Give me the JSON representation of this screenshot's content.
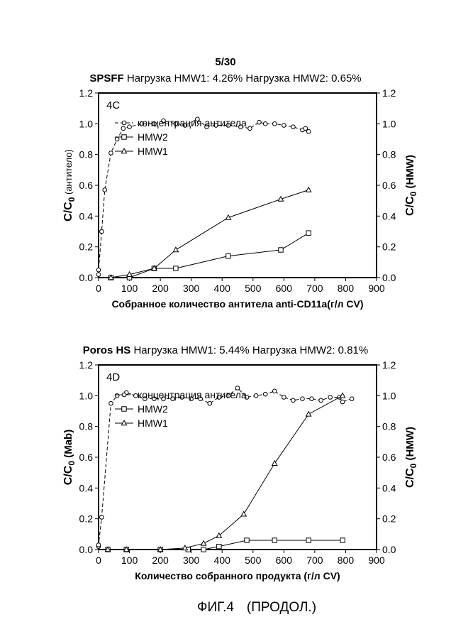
{
  "page_label": "5/30",
  "caption": {
    "fig": "ФИГ.4",
    "cont": "(ПРОДОЛ.)"
  },
  "chart_data": [
    {
      "type": "line",
      "panel": "4C",
      "title_bold": "SPSFF",
      "title_rest": " Нагрузка HMW1: 4.26% Нагрузка HMW2: 0.65%",
      "xlabel": "Собранное количество антитела anti-CD11a(г/л CV)",
      "ylabel_left_main": "C/C",
      "ylabel_left_sub": "0",
      "ylabel_left_extra": " (антитело)",
      "ylabel_right_main": "C/C",
      "ylabel_right_sub": "0",
      "ylabel_right_extra": " (HMW)",
      "xlim": [
        0,
        900
      ],
      "ylim": [
        0,
        1.2
      ],
      "xticks": [
        0,
        100,
        200,
        300,
        400,
        500,
        600,
        700,
        800,
        900
      ],
      "yticks": [
        0.0,
        0.2,
        0.4,
        0.6,
        0.8,
        1.0,
        1.2
      ],
      "legend_position": "upper-left",
      "series": [
        {
          "name": "концентрация антитела",
          "marker": "circle",
          "dash": true,
          "axis": "left",
          "x": [
            0,
            0,
            10,
            20,
            40,
            60,
            80,
            100,
            140,
            180,
            210,
            250,
            280,
            320,
            350,
            380,
            420,
            460,
            490,
            520,
            540,
            570,
            600,
            630,
            660,
            670,
            680
          ],
          "y": [
            0.02,
            0.05,
            0.3,
            0.57,
            0.81,
            0.9,
            0.97,
            0.98,
            1.0,
            1.0,
            1.02,
            1.0,
            0.99,
            1.03,
            0.98,
            0.99,
            0.99,
            0.98,
            0.97,
            1.01,
            1.0,
            1.0,
            0.99,
            0.98,
            0.96,
            0.97,
            0.95
          ]
        },
        {
          "name": "HMW2",
          "marker": "square",
          "dash": false,
          "axis": "right",
          "x": [
            40,
            100,
            180,
            250,
            420,
            590,
            680
          ],
          "y": [
            0.0,
            0.0,
            0.06,
            0.06,
            0.14,
            0.18,
            0.29
          ]
        },
        {
          "name": "HMW1",
          "marker": "triangle",
          "dash": false,
          "axis": "right",
          "x": [
            40,
            100,
            180,
            250,
            420,
            590,
            680
          ],
          "y": [
            0.0,
            0.02,
            0.06,
            0.18,
            0.39,
            0.51,
            0.57
          ]
        }
      ]
    },
    {
      "type": "line",
      "panel": "4D",
      "title_bold": "Poros HS",
      "title_rest": " Нагрузка HMW1: 5.44% Нагрузка HMW2: 0.81%",
      "xlabel": "Количество собранного продукта (г/л CV)",
      "ylabel_left_main": "C/C",
      "ylabel_left_sub": "0",
      "ylabel_left_extra": " (Mab)",
      "ylabel_right_main": "C/C",
      "ylabel_right_sub": "0",
      "ylabel_right_extra": " (HMW)",
      "xlim": [
        0,
        900
      ],
      "ylim": [
        0,
        1.2
      ],
      "xticks": [
        0,
        100,
        200,
        300,
        400,
        500,
        600,
        700,
        800,
        900
      ],
      "yticks": [
        0.0,
        0.2,
        0.4,
        0.6,
        0.8,
        1.0,
        1.2
      ],
      "legend_position": "upper-left",
      "series": [
        {
          "name": "концентрация антитела",
          "marker": "circle",
          "dash": true,
          "axis": "left",
          "x": [
            0,
            0,
            10,
            40,
            60,
            90,
            120,
            150,
            180,
            210,
            240,
            270,
            300,
            330,
            360,
            390,
            420,
            450,
            480,
            510,
            540,
            570,
            600,
            630,
            660,
            690,
            720,
            750,
            780,
            790,
            820
          ],
          "y": [
            0.02,
            0.03,
            0.21,
            0.95,
            1.0,
            1.02,
            1.0,
            0.98,
            0.98,
            0.98,
            0.98,
            0.99,
            0.98,
            0.98,
            0.95,
            0.99,
            1.0,
            1.05,
            0.99,
            1.0,
            1.01,
            1.03,
            0.99,
            0.97,
            0.98,
            0.98,
            0.97,
            0.99,
            0.99,
            0.96,
            0.98
          ]
        },
        {
          "name": "HMW2",
          "marker": "square",
          "dash": false,
          "axis": "right",
          "x": [
            30,
            90,
            200,
            290,
            340,
            390,
            480,
            570,
            680,
            790
          ],
          "y": [
            0.0,
            0.0,
            0.0,
            0.0,
            0.0,
            0.02,
            0.06,
            0.06,
            0.06,
            0.06
          ]
        },
        {
          "name": "HMW1",
          "marker": "triangle",
          "dash": false,
          "axis": "right",
          "x": [
            30,
            90,
            200,
            280,
            340,
            390,
            470,
            570,
            680,
            790
          ],
          "y": [
            0.0,
            0.0,
            0.0,
            0.01,
            0.04,
            0.09,
            0.23,
            0.56,
            0.88,
            1.0
          ]
        }
      ]
    }
  ]
}
